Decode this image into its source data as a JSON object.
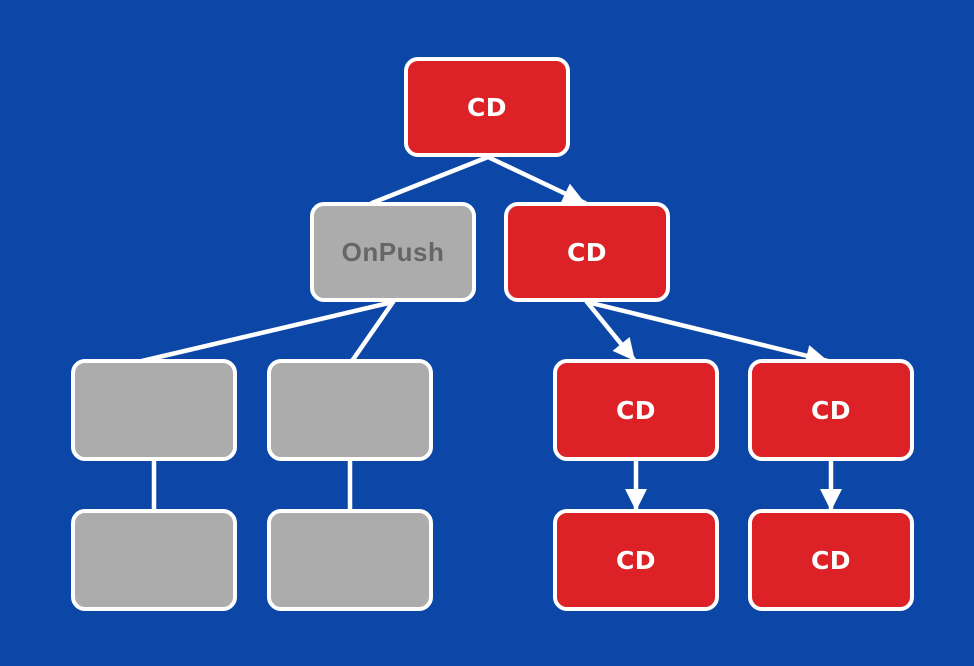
{
  "diagram": {
    "colors": {
      "background": "#0c47a8",
      "active_node": "#dc2127",
      "skipped_node": "#acacac",
      "stroke": "#ffffff",
      "skipped_text": "#666666"
    },
    "nodes": {
      "root": {
        "label": "CD",
        "state": "active"
      },
      "left_child": {
        "label": "OnPush",
        "state": "skipped"
      },
      "right_child": {
        "label": "CD",
        "state": "active"
      },
      "left_leaf_1": {
        "label": "",
        "state": "skipped"
      },
      "left_leaf_2": {
        "label": "",
        "state": "skipped"
      },
      "right_leaf_1": {
        "label": "CD",
        "state": "active"
      },
      "right_leaf_2": {
        "label": "CD",
        "state": "active"
      },
      "left_bottom_1": {
        "label": "",
        "state": "skipped"
      },
      "left_bottom_2": {
        "label": "",
        "state": "skipped"
      },
      "right_bottom_1": {
        "label": "CD",
        "state": "active"
      },
      "right_bottom_2": {
        "label": "CD",
        "state": "active"
      }
    },
    "edges": [
      {
        "from": "root",
        "to": "left_child",
        "arrow": false
      },
      {
        "from": "root",
        "to": "right_child",
        "arrow": true
      },
      {
        "from": "left_child",
        "to": "left_leaf_1",
        "arrow": false
      },
      {
        "from": "left_child",
        "to": "left_leaf_2",
        "arrow": false
      },
      {
        "from": "right_child",
        "to": "right_leaf_1",
        "arrow": true
      },
      {
        "from": "right_child",
        "to": "right_leaf_2",
        "arrow": true
      },
      {
        "from": "left_leaf_1",
        "to": "left_bottom_1",
        "arrow": false
      },
      {
        "from": "left_leaf_2",
        "to": "left_bottom_2",
        "arrow": false
      },
      {
        "from": "right_leaf_1",
        "to": "right_bottom_1",
        "arrow": true
      },
      {
        "from": "right_leaf_2",
        "to": "right_bottom_2",
        "arrow": true
      }
    ]
  }
}
